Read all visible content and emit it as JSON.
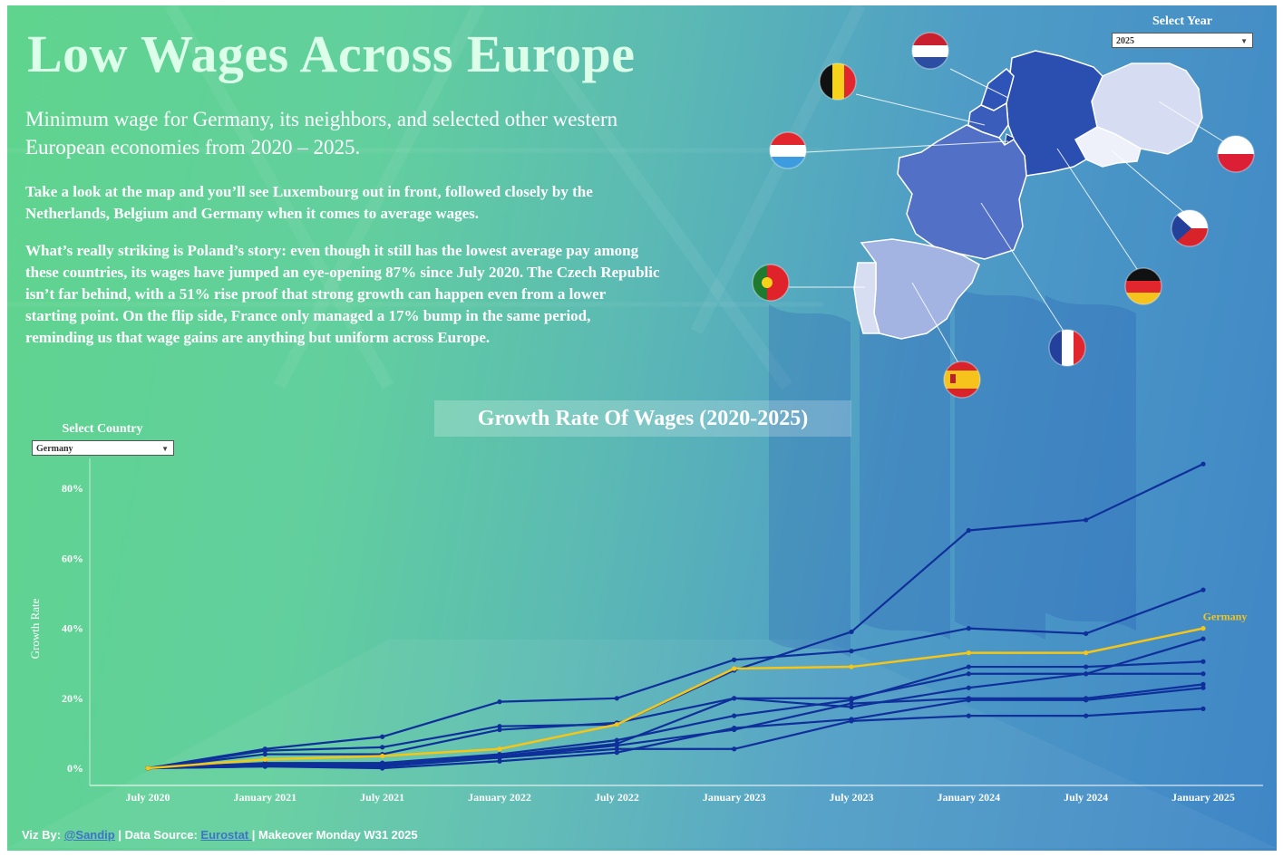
{
  "header": {
    "title": "Low Wages Across Europe",
    "subtitle": "Minimum wage for Germany, its neighbors, and selected other western European economies from 2020 – 2025.",
    "paragraph1": "Take a look at the map and you’ll see Luxembourg out in front, followed closely by the Netherlands, Belgium and Germany when it comes to average wages.",
    "paragraph2": "What’s really striking is Poland’s story: even though it still has the lowest average pay among these countries, its wages have jumped an eye-opening 87% since July 2020. The Czech Republic isn’t far behind, with a 51% rise proof that strong growth can happen even from a lower starting point. On the flip side, France only managed a 17% bump in the same period, reminding us that wage gains are anything but uniform across Europe."
  },
  "year_filter": {
    "label": "Select Year",
    "value": "2025"
  },
  "country_filter": {
    "label": "Select Country",
    "value": "Germany"
  },
  "map": {
    "countries": [
      {
        "name": "Germany",
        "color": "#2a4fb0"
      },
      {
        "name": "Netherlands",
        "color": "#2d54b6"
      },
      {
        "name": "Belgium",
        "color": "#3a5cba"
      },
      {
        "name": "Luxembourg",
        "color": "#1d3d98"
      },
      {
        "name": "France",
        "color": "#5170c6"
      },
      {
        "name": "Spain",
        "color": "#a3b3e2"
      },
      {
        "name": "Portugal",
        "color": "#d7def2"
      },
      {
        "name": "Poland",
        "color": "#d6ddf2"
      },
      {
        "name": "Czechia",
        "color": "#eef1fa"
      }
    ],
    "flags": [
      "Netherlands",
      "Belgium",
      "Luxembourg",
      "Portugal",
      "Spain",
      "France",
      "Germany",
      "Czechia",
      "Poland"
    ]
  },
  "chart_data": {
    "type": "line",
    "title": "Growth Rate Of Wages (2020-2025)",
    "ylabel": "Growth Rate",
    "xlabel": "",
    "x": [
      "July 2020",
      "January 2021",
      "July 2021",
      "January 2022",
      "July 2022",
      "January 2023",
      "July 2023",
      "January 2024",
      "July 2024",
      "January 2025"
    ],
    "yticks": [
      "0%",
      "20%",
      "40%",
      "60%",
      "80%"
    ],
    "ylim": [
      0,
      88
    ],
    "highlight": "Germany",
    "highlight_color": "#f5c518",
    "series_color": "#0f2f9a",
    "series": [
      {
        "values": [
          0,
          5.5,
          9,
          19,
          20,
          31,
          33.5,
          40,
          38.5,
          51
        ]
      },
      {
        "values": [
          0,
          5,
          6,
          12,
          12.5,
          28,
          39,
          68,
          71,
          87
        ]
      },
      {
        "values": [
          0,
          4,
          4,
          11,
          13,
          20,
          20,
          27,
          27,
          37
        ]
      },
      {
        "values": [
          0,
          1.5,
          1.5,
          4,
          8,
          15,
          19.5,
          29,
          29,
          30.5
        ]
      },
      {
        "values": [
          0,
          1,
          1.5,
          3.5,
          7,
          20,
          17.5,
          23,
          27,
          27
        ]
      },
      {
        "values": [
          0,
          0.5,
          0.5,
          3,
          6.5,
          11,
          18.5,
          20,
          20,
          24
        ]
      },
      {
        "values": [
          0,
          0.5,
          0,
          2,
          4.5,
          11.5,
          14,
          19.5,
          19.5,
          23
        ]
      },
      {
        "values": [
          0,
          1,
          1,
          3,
          5.5,
          5.5,
          13.5,
          15,
          15,
          17
        ]
      },
      {
        "name": "Germany",
        "values": [
          0,
          2.5,
          3.5,
          5.5,
          12.5,
          28.5,
          29,
          33,
          33,
          40
        ]
      }
    ]
  },
  "footer": {
    "prefix": "Viz By: ",
    "author": "@Sandip",
    "mid": " | Data Source: ",
    "source": "Eurostat ",
    "suffix": " | Makeover Monday W31 2025"
  }
}
